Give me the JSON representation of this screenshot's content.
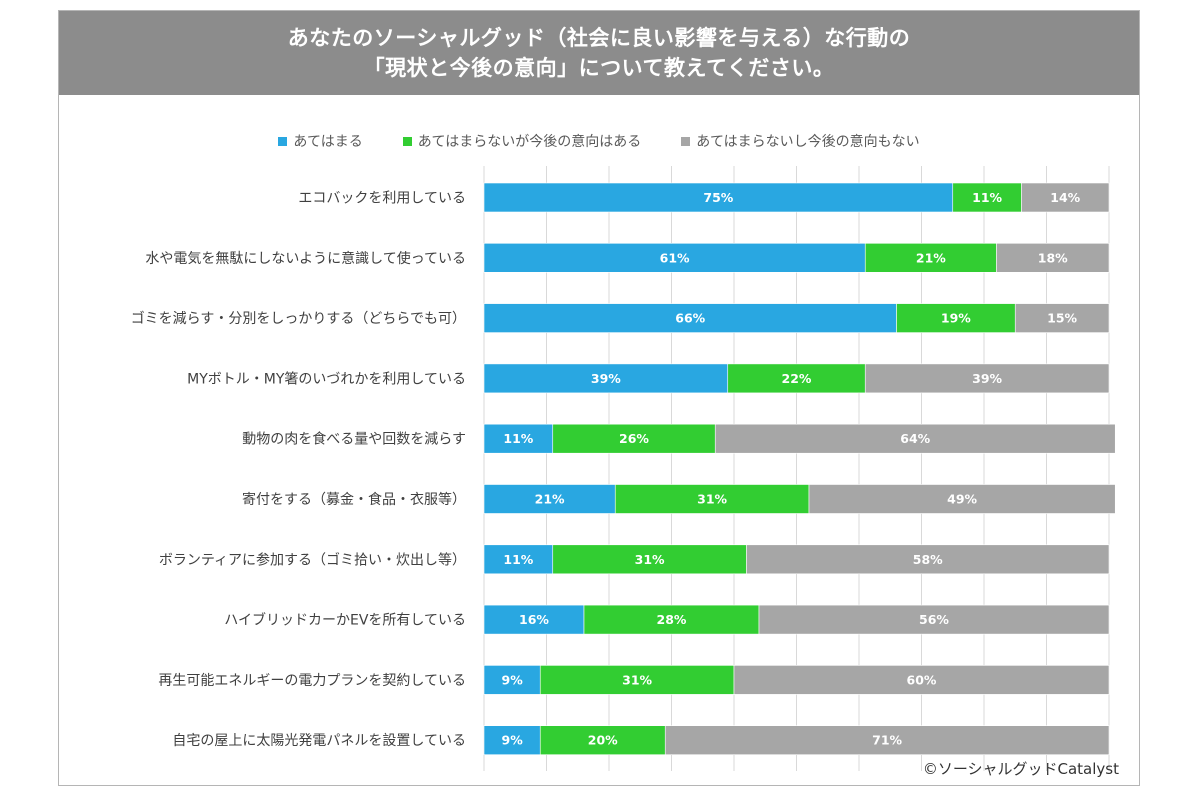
{
  "title": {
    "line1": "あなたのソーシャルグッド（社会に良い影響を与える）な行動の",
    "line2": "「現状と今後の意向」について教えてください。"
  },
  "copyright": "©ソーシャルグッドCatalyst",
  "colors": {
    "series1": "#29a7e1",
    "series2": "#32cd32",
    "series3": "#a6a6a6",
    "title_bg": "#8c8c8c"
  },
  "chart_data": {
    "type": "bar",
    "orientation": "horizontal",
    "stacked": true,
    "title": "あなたのソーシャルグッド（社会に良い影響を与える）な行動の「現状と今後の意向」について教えてください。",
    "legend_position": "top",
    "grid": true,
    "xlim": [
      0,
      100
    ],
    "categories": [
      "エコバックを利用している",
      "水や電気を無駄にしないように意識して使っている",
      "ゴミを減らす・分別をしっかりする（どちらでも可）",
      "MYボトル・MY箸のいづれかを利用している",
      "動物の肉を食べる量や回数を減らす",
      "寄付をする（募金・食品・衣服等）",
      "ボランティアに参加する（ゴミ拾い・炊出し等）",
      "ハイブリッドカーかEVを所有している",
      "再生可能エネルギーの電力プランを契約している",
      "自宅の屋上に太陽光発電パネルを設置している"
    ],
    "series": [
      {
        "name": "あてはまる",
        "color": "#29a7e1",
        "values": [
          75,
          61,
          66,
          39,
          11,
          21,
          11,
          16,
          9,
          9
        ]
      },
      {
        "name": "あてはまらないが今後の意向はある",
        "color": "#32cd32",
        "values": [
          11,
          21,
          19,
          22,
          26,
          31,
          31,
          28,
          31,
          20
        ]
      },
      {
        "name": "あてはまらないし今後の意向もない",
        "color": "#a6a6a6",
        "values": [
          14,
          18,
          15,
          39,
          64,
          49,
          58,
          56,
          60,
          71
        ]
      }
    ],
    "value_suffix": "%"
  }
}
